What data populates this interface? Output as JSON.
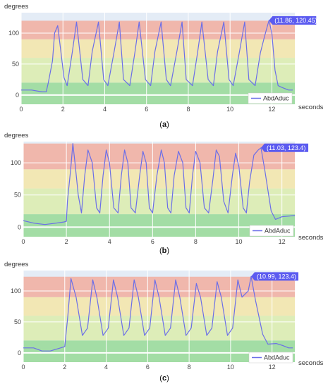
{
  "colors": {
    "line": "#6b6ee8",
    "bg": "#e4ecf6",
    "band_green": "#9fdca0",
    "band_yellowgreen": "#dcedb4",
    "band_yellow": "#f2e7b0",
    "band_red": "#f0b4a8",
    "hover_bg": "#5b5bf0"
  },
  "chart_data": [
    {
      "type": "line",
      "caption_left": "(",
      "caption_letter": "a",
      "caption_right": ")",
      "ylabel": "degrees",
      "xlabel": "seconds",
      "xlim": [
        0,
        13.1
      ],
      "ylim": [
        -15,
        133
      ],
      "x_ticks": [
        0,
        2,
        4,
        6,
        8,
        10,
        12
      ],
      "x_tick_labels": [
        "0",
        "2",
        "4",
        "6",
        "8",
        "10",
        "12"
      ],
      "y_ticks": [
        0,
        50,
        100
      ],
      "y_tick_labels": [
        "0",
        "50",
        "100"
      ],
      "bands": [
        {
          "from": -15,
          "to": 20,
          "color": "band_green"
        },
        {
          "from": 20,
          "to": 60,
          "color": "band_yellowgreen"
        },
        {
          "from": 60,
          "to": 90,
          "color": "band_yellow"
        },
        {
          "from": 90,
          "to": 120,
          "color": "band_red"
        }
      ],
      "series": [
        {
          "name": "AbdAduc",
          "x": [
            0,
            0.5,
            1.0,
            1.2,
            1.3,
            1.5,
            1.6,
            1.75,
            1.9,
            2.05,
            2.2,
            2.45,
            2.65,
            2.95,
            3.2,
            3.4,
            3.7,
            3.95,
            4.15,
            4.45,
            4.7,
            4.9,
            5.2,
            5.45,
            5.65,
            5.95,
            6.2,
            6.4,
            6.7,
            6.95,
            7.15,
            7.45,
            7.7,
            7.9,
            8.2,
            8.45,
            8.65,
            8.95,
            9.2,
            9.4,
            9.7,
            9.95,
            10.15,
            10.45,
            10.7,
            10.9,
            11.2,
            11.45,
            11.65,
            11.86,
            12.0,
            12.15,
            12.3,
            12.5,
            12.8,
            13.0
          ],
          "y": [
            8,
            8,
            5,
            5,
            20,
            55,
            100,
            112,
            70,
            28,
            15,
            70,
            118,
            25,
            15,
            70,
            118,
            25,
            15,
            70,
            118,
            25,
            15,
            70,
            118,
            25,
            15,
            70,
            118,
            25,
            15,
            70,
            118,
            25,
            15,
            70,
            118,
            25,
            15,
            70,
            118,
            25,
            15,
            70,
            118,
            25,
            15,
            68,
            95,
            120.45,
            100,
            40,
            15,
            12,
            8,
            8
          ]
        }
      ],
      "hover_label": "(11.86, 120.45)",
      "hover_point": [
        11.86,
        120.45
      ],
      "legend_position": "bottom-right"
    },
    {
      "type": "line",
      "caption_left": "(",
      "caption_letter": "b",
      "caption_right": ")",
      "ylabel": "degrees",
      "xlabel": "seconds",
      "xlim": [
        0,
        12.6
      ],
      "ylim": [
        -15,
        133
      ],
      "x_ticks": [
        0,
        2,
        4,
        6,
        8,
        10,
        12
      ],
      "x_tick_labels": [
        "0",
        "2",
        "4",
        "6",
        "8",
        "10",
        "12"
      ],
      "y_ticks": [
        0,
        50,
        100
      ],
      "y_tick_labels": [
        "0",
        "50",
        "100"
      ],
      "bands": [
        {
          "from": -15,
          "to": 20,
          "color": "band_green"
        },
        {
          "from": 20,
          "to": 60,
          "color": "band_yellowgreen"
        },
        {
          "from": 60,
          "to": 90,
          "color": "band_yellow"
        },
        {
          "from": 90,
          "to": 130,
          "color": "band_red"
        }
      ],
      "series": [
        {
          "name": "AbdAduc",
          "x": [
            0,
            0.5,
            1.0,
            1.5,
            1.9,
            2.0,
            2.05,
            2.2,
            2.3,
            2.4,
            2.55,
            2.7,
            2.85,
            3.0,
            3.2,
            3.4,
            3.55,
            3.7,
            3.85,
            4.0,
            4.2,
            4.4,
            4.55,
            4.7,
            4.85,
            5.0,
            5.2,
            5.4,
            5.55,
            5.7,
            5.85,
            6.0,
            6.2,
            6.4,
            6.55,
            6.7,
            6.85,
            7.0,
            7.2,
            7.4,
            7.55,
            7.7,
            7.85,
            8.0,
            8.2,
            8.4,
            8.6,
            8.8,
            8.95,
            9.1,
            9.3,
            9.5,
            9.7,
            9.85,
            10.0,
            10.2,
            10.35,
            10.5,
            10.7,
            10.9,
            11.03,
            11.2,
            11.5,
            11.7,
            12.0,
            12.6
          ],
          "y": [
            10,
            6,
            4,
            6,
            8,
            9,
            40,
            90,
            130,
            100,
            50,
            22,
            80,
            120,
            100,
            30,
            22,
            80,
            120,
            100,
            30,
            22,
            80,
            120,
            100,
            30,
            22,
            80,
            118,
            100,
            30,
            22,
            80,
            120,
            100,
            30,
            22,
            80,
            118,
            100,
            30,
            22,
            80,
            118,
            100,
            30,
            22,
            75,
            120,
            110,
            40,
            22,
            80,
            115,
            95,
            30,
            22,
            70,
            112,
            120,
            123.4,
            90,
            25,
            12,
            16,
            18
          ]
        }
      ],
      "hover_label": "(11.03, 123.4)",
      "hover_point": [
        11.03,
        123.4
      ],
      "legend_position": "bottom-right"
    },
    {
      "type": "line",
      "caption_left": "(",
      "caption_letter": "c",
      "caption_right": ")",
      "ylabel": "degrees",
      "xlabel": "seconds",
      "xlim": [
        0,
        13.1
      ],
      "ylim": [
        -15,
        133
      ],
      "x_ticks": [
        0,
        2,
        4,
        6,
        8,
        10,
        12
      ],
      "x_tick_labels": [
        "0",
        "2",
        "4",
        "6",
        "8",
        "10",
        "12"
      ],
      "y_ticks": [
        0,
        50,
        100
      ],
      "y_tick_labels": [
        "0",
        "50",
        "100"
      ],
      "bands": [
        {
          "from": -15,
          "to": 20,
          "color": "band_green"
        },
        {
          "from": 20,
          "to": 60,
          "color": "band_yellowgreen"
        },
        {
          "from": 60,
          "to": 90,
          "color": "band_yellow"
        },
        {
          "from": 90,
          "to": 123,
          "color": "band_red"
        }
      ],
      "series": [
        {
          "name": "AbdAduc",
          "x": [
            0,
            0.5,
            0.9,
            1.3,
            1.8,
            2.0,
            2.15,
            2.3,
            2.55,
            2.85,
            3.1,
            3.35,
            3.55,
            3.85,
            4.1,
            4.35,
            4.55,
            4.85,
            5.1,
            5.35,
            5.55,
            5.85,
            6.1,
            6.35,
            6.55,
            6.85,
            7.1,
            7.35,
            7.55,
            7.85,
            8.1,
            8.35,
            8.55,
            8.85,
            9.1,
            9.35,
            9.55,
            9.85,
            10.1,
            10.35,
            10.55,
            10.85,
            10.99,
            11.2,
            11.55,
            11.8,
            12.2,
            12.5,
            12.8,
            13.0
          ],
          "y": [
            8,
            8,
            3,
            3,
            8,
            10,
            60,
            120,
            90,
            28,
            40,
            118,
            90,
            28,
            40,
            118,
            90,
            28,
            40,
            118,
            90,
            28,
            40,
            118,
            90,
            28,
            40,
            118,
            90,
            28,
            40,
            112,
            90,
            28,
            40,
            115,
            90,
            28,
            40,
            118,
            90,
            100,
            123.4,
            85,
            30,
            14,
            15,
            12,
            8,
            8
          ]
        }
      ],
      "hover_label": "(10.99, 123.4)",
      "hover_point": [
        10.99,
        123.4
      ],
      "legend_position": "bottom-right"
    }
  ]
}
